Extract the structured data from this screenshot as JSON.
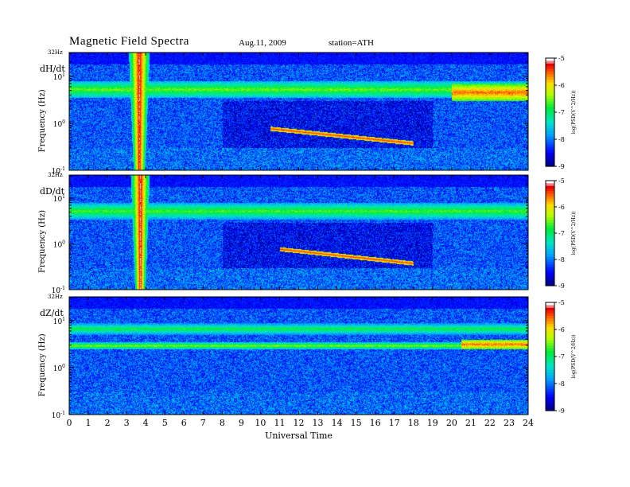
{
  "header": {
    "title": "Magnetic  Field  Spectra",
    "date": "Aug.11, 2009",
    "station": "station=ATH"
  },
  "chart_data": [
    {
      "type": "heatmap",
      "panel_label": "dH/dt",
      "top_label": "32Hz",
      "ylabel": "Frequency  (Hz)",
      "y_scale": "log",
      "y_ticks": [
        "10^1",
        "10^0",
        "10^-1"
      ],
      "x_range_hours": [
        0,
        24
      ],
      "colorbar": {
        "label": "log(PSD(V^2/Hz))",
        "ticks": [
          "-5",
          "-6",
          "-7",
          "-8",
          "-9"
        ],
        "range": [
          -9,
          -5
        ]
      },
      "features": [
        {
          "name": "broadband burst",
          "x_hours": [
            3.1,
            4.2
          ],
          "y_hz": [
            0.1,
            32
          ],
          "level": -5.2
        },
        {
          "name": "band near 5 Hz",
          "x_hours": [
            0,
            24
          ],
          "y_hz": [
            3.5,
            8
          ],
          "level": -6.5
        },
        {
          "name": "emission line",
          "x_hours": [
            10.5,
            18.0
          ],
          "y_hz": [
            0.35,
            0.8
          ],
          "level": -5.5
        },
        {
          "name": "late band patches",
          "x_hours": [
            20,
            24
          ],
          "y_hz": [
            3,
            7
          ],
          "level": -5.5
        }
      ]
    },
    {
      "type": "heatmap",
      "panel_label": "dD/dt",
      "top_label": "32Hz",
      "ylabel": "Frequency  (Hz)",
      "y_scale": "log",
      "y_ticks": [
        "10^1",
        "10^0",
        "10^-1"
      ],
      "x_range_hours": [
        0,
        24
      ],
      "colorbar": {
        "label": "log(PSD(V^2/Hz))",
        "ticks": [
          "-5",
          "-6",
          "-7",
          "-8",
          "-9"
        ],
        "range": [
          -9,
          -5
        ]
      },
      "features": [
        {
          "name": "broadband burst",
          "x_hours": [
            3.2,
            4.2
          ],
          "y_hz": [
            0.1,
            32
          ],
          "level": -5.2
        },
        {
          "name": "band near 5 Hz",
          "x_hours": [
            0,
            24
          ],
          "y_hz": [
            3.5,
            8
          ],
          "level": -6.6
        },
        {
          "name": "emission line",
          "x_hours": [
            11.0,
            18.0
          ],
          "y_hz": [
            0.35,
            0.8
          ],
          "level": -5.5
        }
      ]
    },
    {
      "type": "heatmap",
      "panel_label": "dZ/dt",
      "top_label": "32Hz",
      "ylabel": "Frequency  (Hz)",
      "y_scale": "log",
      "y_ticks": [
        "10^1",
        "10^0",
        "10^-1"
      ],
      "x_range_hours": [
        0,
        24
      ],
      "colorbar": {
        "label": "log(PSD(V^2/Hz))",
        "ticks": [
          "-5",
          "-6",
          "-7",
          "-8",
          "-9"
        ],
        "range": [
          -9,
          -5
        ]
      },
      "features": [
        {
          "name": "band near 3 Hz",
          "x_hours": [
            0,
            24
          ],
          "y_hz": [
            2.5,
            3.5
          ],
          "level": -6.4
        },
        {
          "name": "band near 7 Hz",
          "x_hours": [
            0,
            24
          ],
          "y_hz": [
            5,
            9
          ],
          "level": -6.8
        },
        {
          "name": "late patches",
          "x_hours": [
            20.5,
            24
          ],
          "y_hz": [
            2.5,
            4
          ],
          "level": -5.5
        }
      ]
    }
  ],
  "x_axis": {
    "label": "Universal Time",
    "ticks": [
      "0",
      "1",
      "2",
      "3",
      "4",
      "5",
      "6",
      "7",
      "8",
      "9",
      "10",
      "11",
      "12",
      "13",
      "14",
      "15",
      "16",
      "17",
      "18",
      "19",
      "20",
      "21",
      "22",
      "23",
      "24"
    ]
  }
}
